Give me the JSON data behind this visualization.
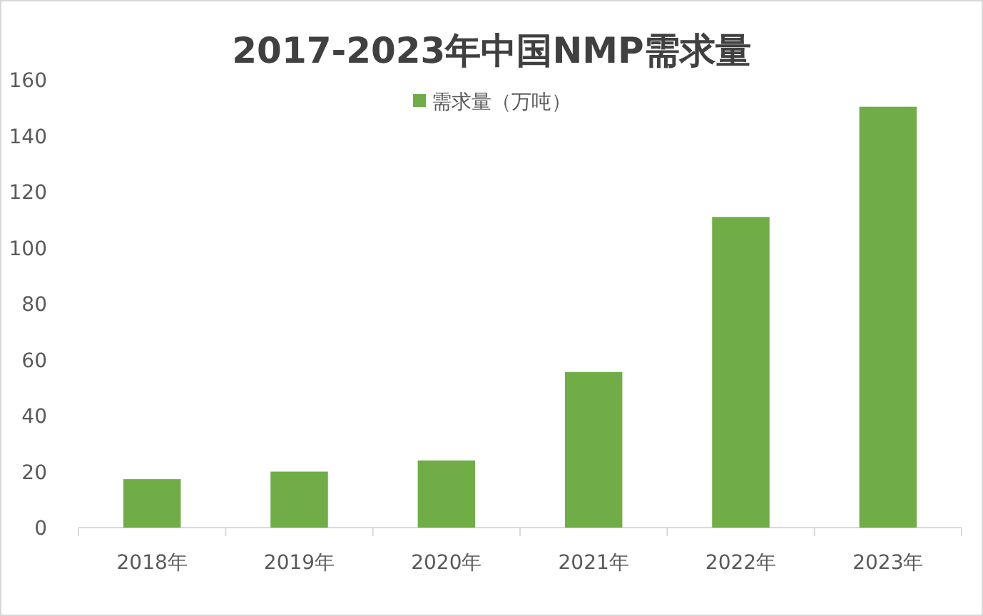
{
  "chart_data": {
    "type": "bar",
    "title": "2017-2023年中国NMP需求量",
    "categories": [
      "2018年",
      "2019年",
      "2020年",
      "2021年",
      "2022年",
      "2023年"
    ],
    "series": [
      {
        "name": "需求量（万吨）",
        "color": "#70ad47",
        "values": [
          17.3,
          20,
          24,
          55.6,
          111,
          150.4
        ]
      }
    ],
    "ylim": [
      0,
      160
    ],
    "yticks": [
      0,
      20,
      40,
      60,
      80,
      100,
      120,
      140,
      160
    ],
    "legend": "top"
  }
}
